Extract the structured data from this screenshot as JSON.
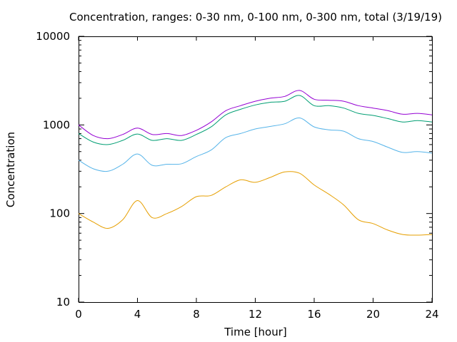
{
  "chart_data": {
    "type": "line",
    "title": "Concentration, ranges: 0-30 nm, 0-100 nm, 0-300 nm, total (3/19/19)",
    "xlabel": "Time [hour]",
    "ylabel": "Concentration",
    "xlim": [
      0,
      24
    ],
    "ylim": [
      10,
      10000
    ],
    "yscale": "log",
    "grid": false,
    "legend": "none",
    "x_ticks": [
      "0",
      "4",
      "8",
      "12",
      "16",
      "20",
      "24"
    ],
    "y_ticks": [
      "10",
      "100",
      "1000",
      "10000"
    ],
    "x": [
      0,
      1,
      2,
      3,
      4,
      5,
      6,
      7,
      8,
      9,
      10,
      11,
      12,
      13,
      14,
      15,
      16,
      17,
      18,
      19,
      20,
      21,
      22,
      23,
      24
    ],
    "series": [
      {
        "color": "#e69f00",
        "values": [
          100,
          80,
          68,
          85,
          140,
          90,
          100,
          120,
          155,
          160,
          200,
          240,
          225,
          255,
          295,
          285,
          210,
          165,
          125,
          85,
          77,
          65,
          58,
          57,
          58
        ]
      },
      {
        "color": "#56b4e9",
        "values": [
          400,
          320,
          300,
          360,
          470,
          350,
          360,
          365,
          440,
          520,
          720,
          800,
          900,
          960,
          1030,
          1200,
          950,
          880,
          850,
          700,
          650,
          560,
          490,
          500,
          480
        ]
      },
      {
        "color": "#009e73",
        "values": [
          800,
          640,
          600,
          670,
          790,
          670,
          700,
          670,
          780,
          950,
          1300,
          1500,
          1680,
          1800,
          1850,
          2150,
          1650,
          1650,
          1550,
          1350,
          1280,
          1180,
          1080,
          1120,
          1080
        ]
      },
      {
        "color": "#9400d3",
        "values": [
          1000,
          760,
          700,
          780,
          920,
          780,
          800,
          760,
          870,
          1080,
          1450,
          1650,
          1850,
          2000,
          2100,
          2450,
          1950,
          1900,
          1850,
          1650,
          1550,
          1450,
          1320,
          1350,
          1300
        ]
      }
    ]
  }
}
